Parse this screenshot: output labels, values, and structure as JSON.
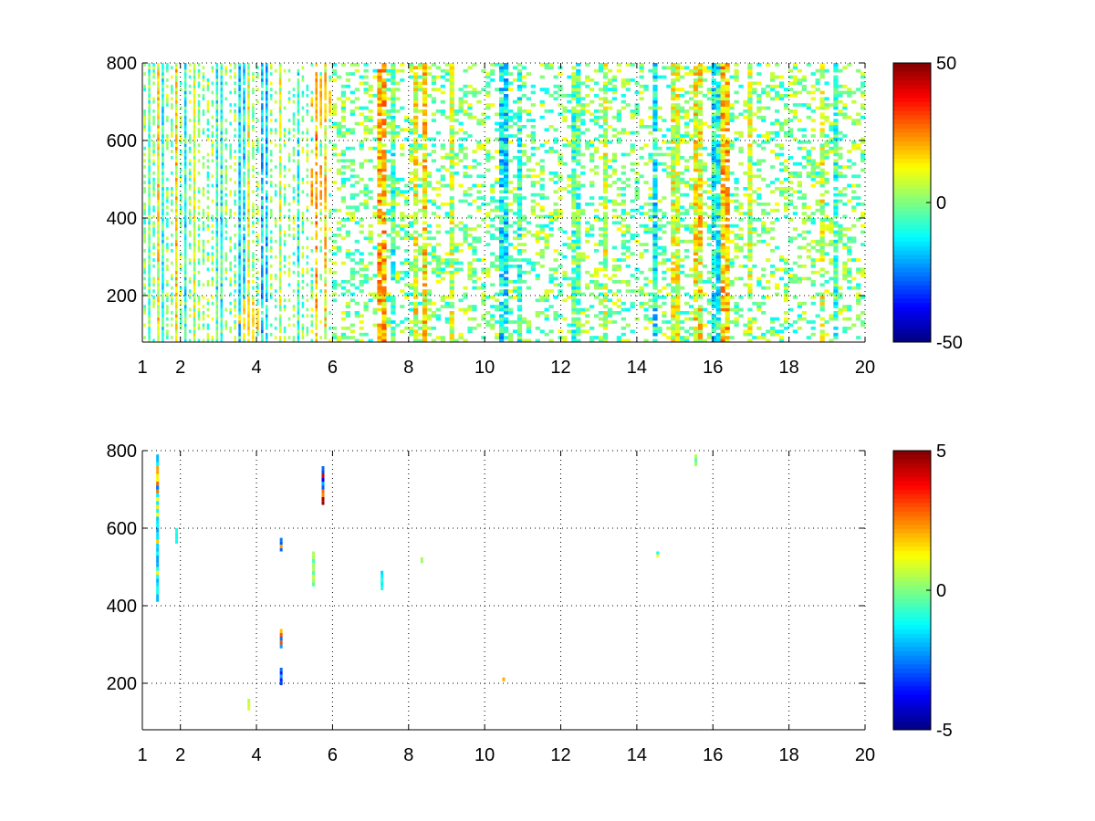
{
  "chart_data": [
    {
      "type": "heatmap",
      "title": "",
      "xlabel": "",
      "ylabel": "",
      "xlim": [
        1,
        20
      ],
      "ylim": [
        80,
        800
      ],
      "x_ticks": [
        "1",
        "2",
        "4",
        "6",
        "8",
        "10",
        "12",
        "14",
        "16",
        "18",
        "20"
      ],
      "y_ticks": [
        "200",
        "400",
        "600",
        "800"
      ],
      "grid": true,
      "colormap": "jet",
      "colorbar": {
        "min": -50,
        "max": 50,
        "ticks": [
          "50",
          "0",
          "-50"
        ]
      },
      "density": "dense",
      "columns": [
        {
          "x": 1.2,
          "v": -3
        },
        {
          "x": 1.4,
          "v": 12
        },
        {
          "x": 1.55,
          "v": -8
        },
        {
          "x": 1.9,
          "v": 14
        },
        {
          "x": 2.1,
          "v": -10
        },
        {
          "x": 2.4,
          "v": 6
        },
        {
          "x": 3.0,
          "v": -9
        },
        {
          "x": 3.6,
          "v": -14
        },
        {
          "x": 3.8,
          "v": 8
        },
        {
          "x": 4.2,
          "v": -16
        },
        {
          "x": 4.6,
          "v": 6
        },
        {
          "x": 5.1,
          "v": -8
        },
        {
          "x": 5.6,
          "v": 20
        },
        {
          "x": 5.8,
          "v": 12
        },
        {
          "x": 7.3,
          "v": 18
        },
        {
          "x": 7.6,
          "v": -6
        },
        {
          "x": 8.2,
          "v": 10
        },
        {
          "x": 8.4,
          "v": 14
        },
        {
          "x": 9.1,
          "v": 6
        },
        {
          "x": 10.5,
          "v": -14
        },
        {
          "x": 10.9,
          "v": -6
        },
        {
          "x": 12.4,
          "v": -4
        },
        {
          "x": 13.2,
          "v": 6
        },
        {
          "x": 14.5,
          "v": -12
        },
        {
          "x": 15.0,
          "v": 8
        },
        {
          "x": 15.6,
          "v": 12
        },
        {
          "x": 16.1,
          "v": -10
        },
        {
          "x": 16.3,
          "v": 18
        },
        {
          "x": 17.0,
          "v": 6
        },
        {
          "x": 18.9,
          "v": 8
        },
        {
          "x": 19.2,
          "v": -6
        }
      ],
      "hotspots": [
        {
          "x": 3.8,
          "y": 140,
          "v": 22
        },
        {
          "x": 5.6,
          "y": 480,
          "v": 28
        },
        {
          "x": 5.7,
          "y": 700,
          "v": 24
        }
      ]
    },
    {
      "type": "heatmap",
      "title": "",
      "xlabel": "",
      "ylabel": "",
      "xlim": [
        1,
        20
      ],
      "ylim": [
        80,
        800
      ],
      "x_ticks": [
        "1",
        "2",
        "4",
        "6",
        "8",
        "10",
        "12",
        "14",
        "16",
        "18",
        "20"
      ],
      "y_ticks": [
        "200",
        "400",
        "600",
        "800"
      ],
      "grid": true,
      "colormap": "jet",
      "colorbar": {
        "min": -5,
        "max": 5,
        "ticks": [
          "5",
          "0",
          "-5"
        ]
      },
      "density": "sparse",
      "marks": [
        {
          "x": 1.4,
          "y0": 410,
          "y1": 790,
          "v": -2
        },
        {
          "x": 1.4,
          "y0": 690,
          "y1": 720,
          "v": 3
        },
        {
          "x": 1.9,
          "y0": 560,
          "y1": 600,
          "v": -1
        },
        {
          "x": 3.8,
          "y0": 130,
          "y1": 160,
          "v": 0.8
        },
        {
          "x": 4.65,
          "y0": 195,
          "y1": 240,
          "v": -3
        },
        {
          "x": 4.65,
          "y0": 290,
          "y1": 340,
          "v": 3.5
        },
        {
          "x": 4.65,
          "y0": 540,
          "y1": 575,
          "v": -2.5
        },
        {
          "x": 5.5,
          "y0": 450,
          "y1": 540,
          "v": 0.6
        },
        {
          "x": 5.75,
          "y0": 660,
          "y1": 760,
          "v": 4
        },
        {
          "x": 5.75,
          "y0": 700,
          "y1": 760,
          "v": -4
        },
        {
          "x": 7.3,
          "y0": 440,
          "y1": 490,
          "v": -1.5
        },
        {
          "x": 8.35,
          "y0": 510,
          "y1": 525,
          "v": 0.5
        },
        {
          "x": 10.5,
          "y0": 205,
          "y1": 215,
          "v": 2.5
        },
        {
          "x": 14.55,
          "y0": 525,
          "y1": 540,
          "v": -1
        },
        {
          "x": 15.55,
          "y0": 760,
          "y1": 790,
          "v": 0.4
        }
      ]
    }
  ]
}
